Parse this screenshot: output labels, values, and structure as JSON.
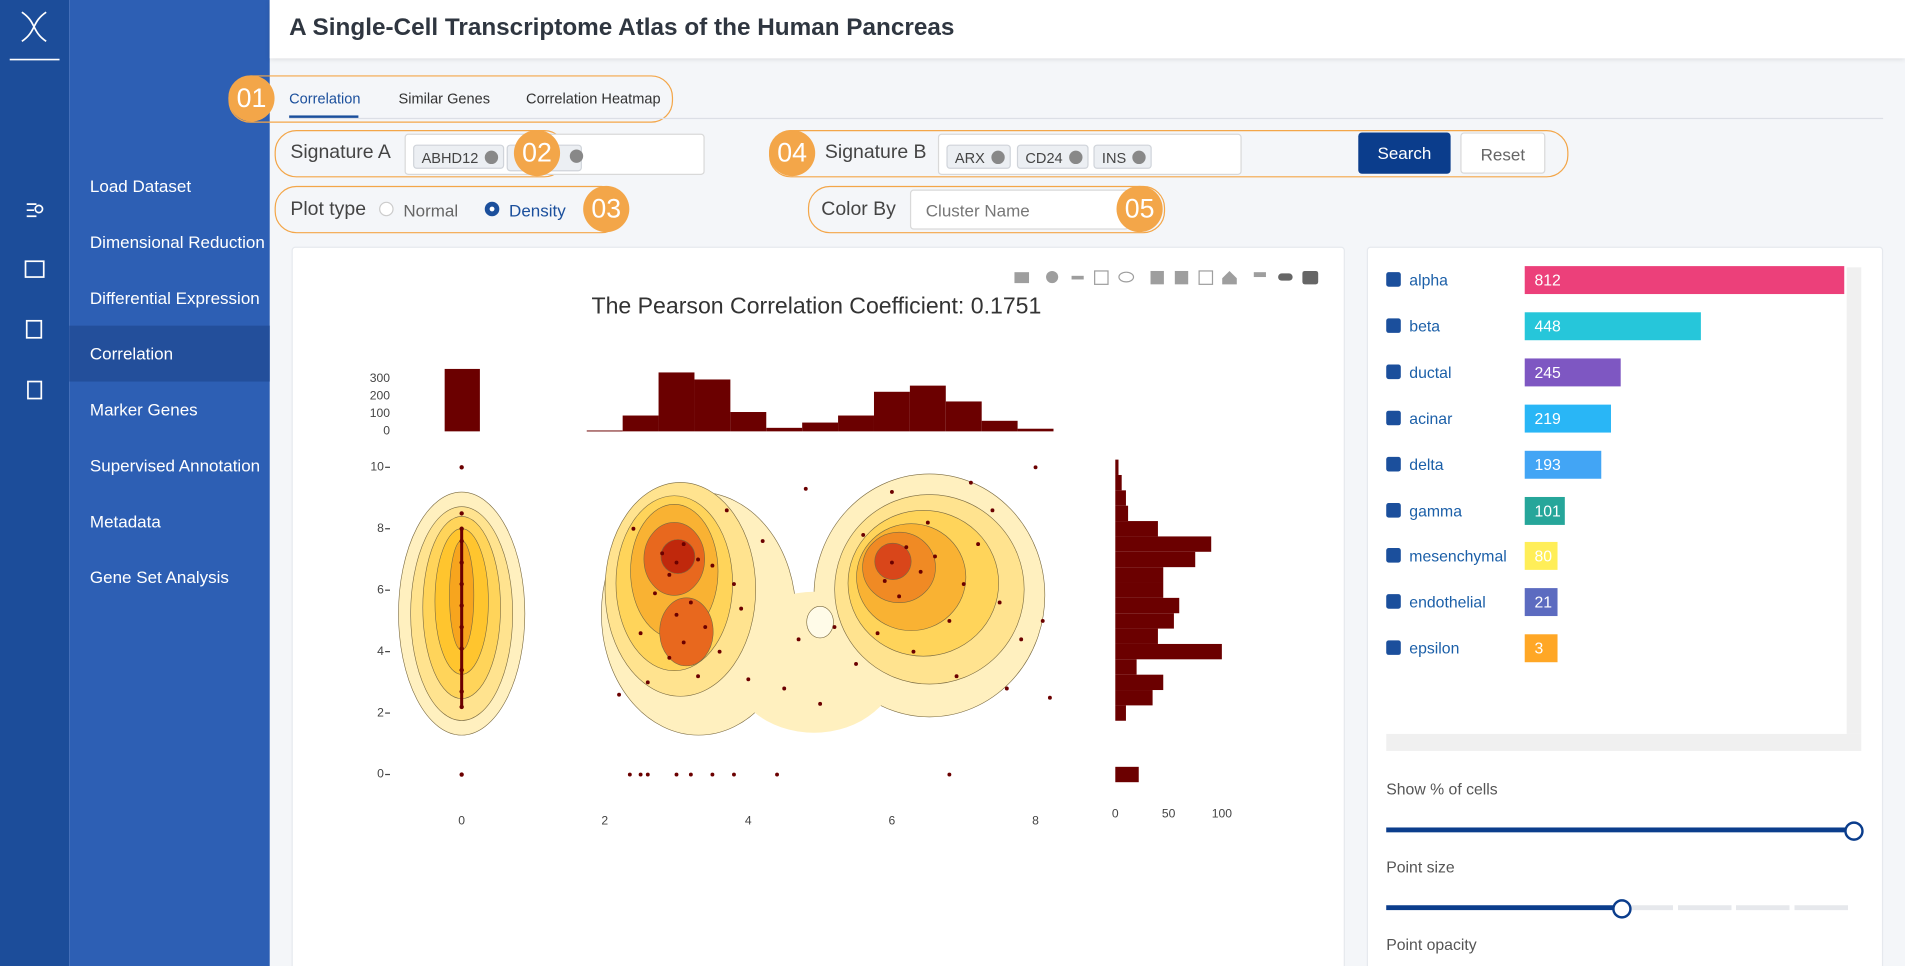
{
  "header": {
    "title": "A Single-Cell Transcriptome Atlas of the Human Pancreas"
  },
  "sidebar": {
    "nav": [
      "Load Dataset",
      "Dimensional Reduction",
      "Differential Expression",
      "Correlation",
      "Marker Genes",
      "Supervised Annotation",
      "Metadata",
      "Gene Set Analysis"
    ],
    "selected": "Correlation"
  },
  "tabs": {
    "items": [
      "Correlation",
      "Similar Genes",
      "Correlation Heatmap"
    ],
    "selected": "Correlation"
  },
  "annotations": [
    "01",
    "02",
    "03",
    "04",
    "05"
  ],
  "signature_a": {
    "label": "Signature A",
    "tags": [
      "ABHD12"
    ]
  },
  "signature_b": {
    "label": "Signature B",
    "tags": [
      "ARX",
      "CD24",
      "INS"
    ]
  },
  "buttons": {
    "search": "Search",
    "reset": "Reset"
  },
  "plot_type": {
    "label": "Plot type",
    "options": [
      "Normal",
      "Density"
    ],
    "selected": "Density"
  },
  "color_by": {
    "label": "Color By",
    "placeholder": "Cluster Name"
  },
  "chart_data": {
    "type": "scatter",
    "title": "The Pearson Correlation Coefficient: 0.1751",
    "color": "#6b0000",
    "x": [
      2.8,
      3.0,
      3.1,
      2.9,
      3.3,
      3.5,
      3.2,
      3.0,
      3.4,
      3.1,
      2.9,
      3.6,
      3.3,
      2.7,
      3.8,
      2.5,
      2.6,
      3.9,
      4.2,
      2.4,
      3.7,
      2.2,
      4.0,
      4.5,
      6.0,
      6.2,
      5.9,
      6.4,
      6.6,
      6.1,
      5.8,
      6.3,
      6.8,
      7.0,
      7.2,
      6.5,
      5.6,
      7.5,
      7.8,
      5.5,
      6.9,
      7.4,
      5.2,
      8.1,
      7.6,
      8.2,
      6.0,
      7.1,
      4.8,
      5.0,
      8.0,
      4.7,
      2.35,
      2.5,
      2.6,
      3.0,
      3.2,
      3.5,
      3.8,
      4.4,
      6.8
    ],
    "y": [
      7.2,
      6.9,
      7.5,
      6.5,
      7.0,
      6.8,
      5.6,
      5.2,
      4.8,
      4.3,
      3.8,
      4.0,
      3.2,
      5.9,
      6.2,
      4.6,
      3.0,
      5.4,
      7.6,
      8.0,
      8.6,
      2.6,
      3.1,
      2.8,
      6.9,
      7.4,
      6.3,
      6.6,
      7.1,
      5.8,
      4.6,
      4.0,
      5.0,
      6.2,
      7.5,
      8.2,
      7.8,
      5.6,
      4.4,
      3.6,
      3.2,
      8.6,
      4.8,
      5.0,
      2.8,
      2.5,
      9.2,
      9.5,
      9.3,
      2.3,
      10.0,
      4.4,
      0,
      0,
      0,
      0,
      0,
      0,
      0,
      0,
      0
    ],
    "xlim": [
      1.7,
      8.4
    ],
    "xticks": [
      2,
      4,
      6,
      8
    ],
    "ylim": [
      -0.3,
      10.3
    ],
    "yticks": [
      0,
      2,
      4,
      6,
      8,
      10
    ],
    "strip": {
      "xticks": [
        0
      ],
      "y": [
        10,
        0,
        8.5,
        8.0,
        7.6,
        6.9,
        6.2,
        5.5,
        4.8,
        4.1,
        3.4,
        2.7,
        2.2
      ],
      "histogram": 355
    },
    "top_histogram": {
      "bins": [
        1.75,
        2.25,
        2.75,
        3.25,
        3.75,
        4.25,
        4.75,
        5.25,
        5.75,
        6.25,
        6.75,
        7.25,
        7.75,
        8.25
      ],
      "counts": [
        5,
        90,
        335,
        295,
        110,
        20,
        50,
        90,
        225,
        260,
        170,
        60,
        15
      ],
      "ylim": [
        0,
        380
      ],
      "yticks": [
        0,
        100,
        200,
        300
      ]
    },
    "right_histogram": {
      "bins": [
        -0.25,
        0.25,
        0.75,
        1.25,
        1.75,
        2.25,
        2.75,
        3.25,
        3.75,
        4.25,
        4.75,
        5.25,
        5.75,
        6.25,
        6.75,
        7.25,
        7.75,
        8.25,
        8.75,
        9.25,
        9.75,
        10.25
      ],
      "counts": [
        22,
        0,
        0,
        0,
        10,
        35,
        45,
        20,
        100,
        40,
        55,
        60,
        45,
        45,
        75,
        90,
        40,
        12,
        10,
        6,
        3
      ],
      "xlim": [
        0,
        114
      ],
      "xticks": [
        0,
        50,
        100
      ]
    }
  },
  "clusters": {
    "names": [
      "alpha",
      "beta",
      "ductal",
      "acinar",
      "delta",
      "gamma",
      "mesenchymal",
      "endothelial",
      "epsilon"
    ],
    "values": [
      812,
      448,
      245,
      219,
      193,
      101,
      80,
      21,
      3
    ],
    "colors": [
      "#ec407a",
      "#26c6da",
      "#7e57c2",
      "#29b6f6",
      "#42a5f5",
      "#26a69a",
      "#ffee58",
      "#5c6bc0",
      "#ffa726"
    ]
  },
  "controls": {
    "labels": [
      "Show % of cells",
      "Point size",
      "Point opacity"
    ]
  }
}
